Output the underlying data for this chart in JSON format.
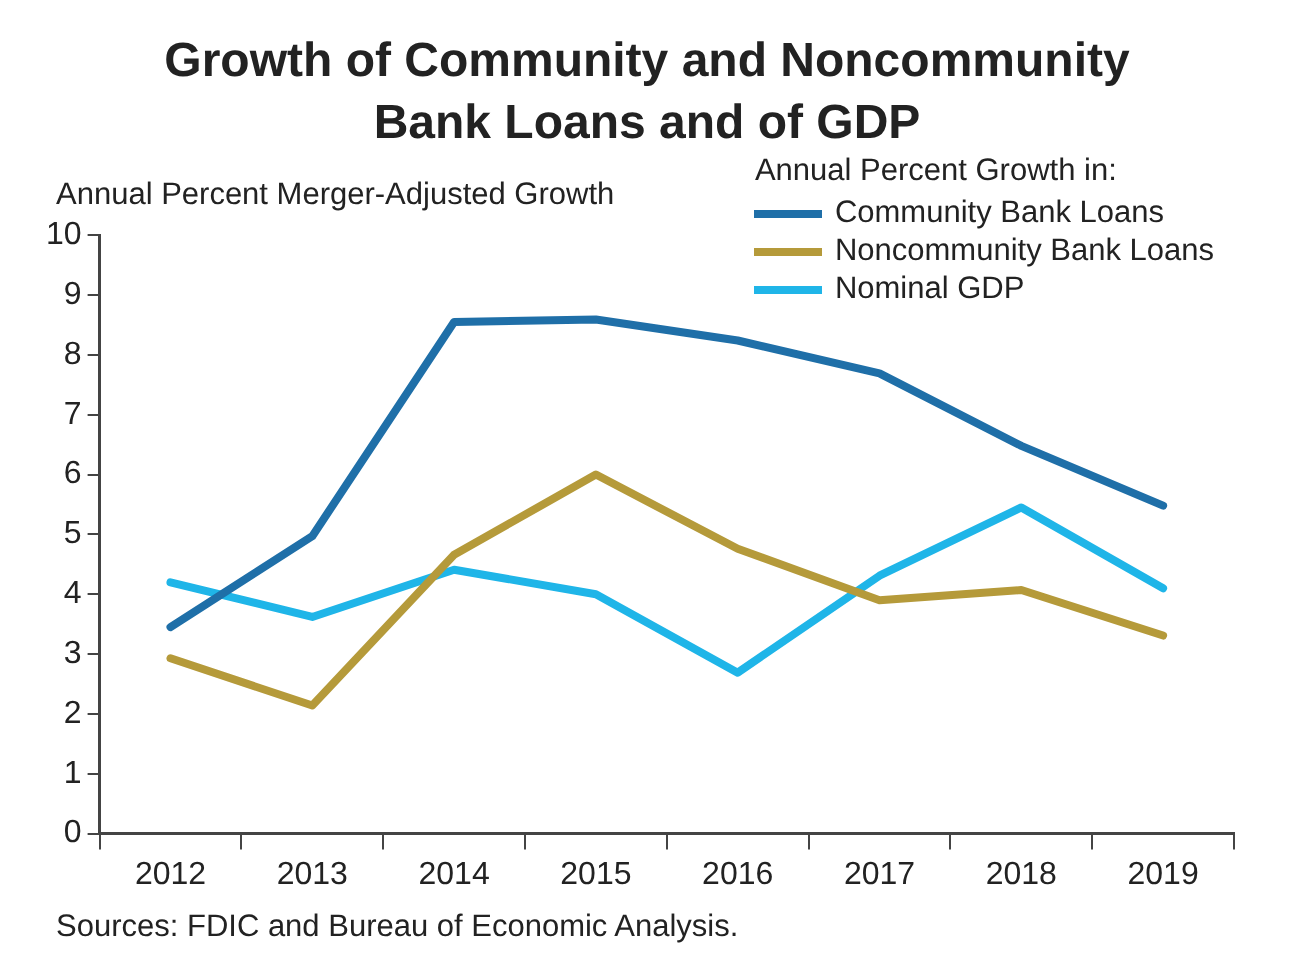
{
  "chart_data": {
    "type": "line",
    "title": "Growth of Community and Noncommunity\nBank Loans and of GDP",
    "ylabel": "Annual Percent Merger-Adjusted Growth",
    "legend_title": "Annual Percent Growth in:",
    "legend": "top right",
    "marker": "none",
    "line_style": "solid",
    "categories": [
      "2012",
      "2013",
      "2014",
      "2015",
      "2016",
      "2017",
      "2018",
      "2019"
    ],
    "series": [
      {
        "name": "Community Bank Loans",
        "color": "#1f6fa8",
        "values": [
          3.45,
          4.97,
          8.55,
          8.59,
          8.24,
          7.69,
          6.48,
          5.48
        ]
      },
      {
        "name": "Noncommunity Bank Loans",
        "color": "#b59a3a",
        "values": [
          2.93,
          2.14,
          4.66,
          6.0,
          4.76,
          3.9,
          4.07,
          3.31
        ]
      },
      {
        "name": "Nominal GDP",
        "color": "#1fb5e8",
        "values": [
          4.2,
          3.62,
          4.41,
          4.0,
          2.69,
          4.31,
          5.45,
          4.1
        ]
      }
    ],
    "ylim": [
      0,
      10
    ],
    "yticks": [
      0,
      1,
      2,
      3,
      4,
      5,
      6,
      7,
      8,
      9,
      10
    ],
    "annotations": [
      "Sources: FDIC and Bureau of Economic Analysis."
    ]
  }
}
